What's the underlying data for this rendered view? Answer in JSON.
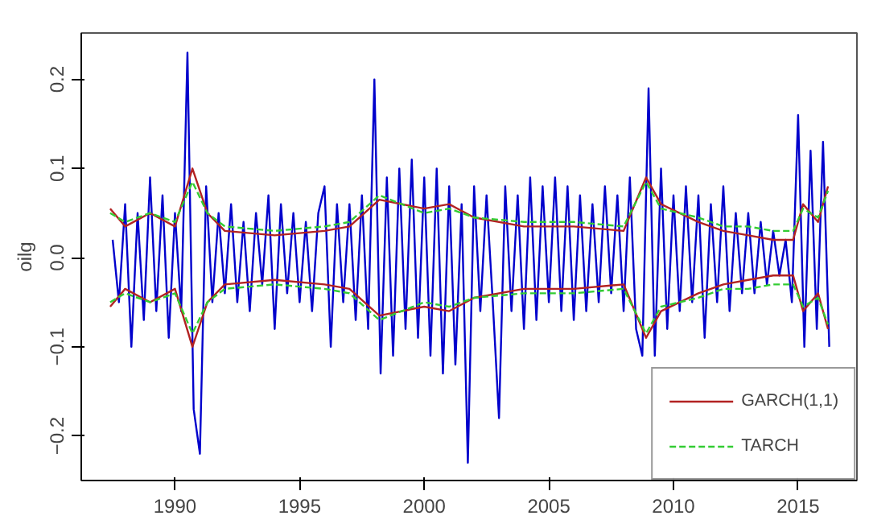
{
  "chart_data": {
    "type": "line",
    "ylabel": "oilg",
    "xlim": [
      1986.24,
      2017.36
    ],
    "ylim": [
      -0.25,
      0.252
    ],
    "xticks": [
      1990,
      1995,
      2000,
      2005,
      2010,
      2015
    ],
    "yticks": [
      -0.2,
      -0.1,
      {
        "value": 0,
        "label": "0.0"
      },
      0.1,
      0.2
    ],
    "grid": false,
    "legend": "bottom right",
    "marker": "none",
    "series": [
      {
        "color": "#0000cc",
        "line_style": "solid",
        "x": [
          1987.5,
          1987.75,
          1988,
          1988.25,
          1988.5,
          1988.75,
          1989,
          1989.25,
          1989.5,
          1989.75,
          1990,
          1990.25,
          1990.5,
          1990.75,
          1991,
          1991.25,
          1991.5,
          1991.75,
          1992,
          1992.25,
          1992.5,
          1992.75,
          1993,
          1993.25,
          1993.5,
          1993.75,
          1994,
          1994.25,
          1994.5,
          1994.75,
          1995,
          1995.25,
          1995.5,
          1995.75,
          1996,
          1996.25,
          1996.5,
          1996.75,
          1997,
          1997.25,
          1997.5,
          1997.75,
          1998,
          1998.25,
          1998.5,
          1998.75,
          1999,
          1999.25,
          1999.5,
          1999.75,
          2000,
          2000.25,
          2000.5,
          2000.75,
          2001,
          2001.25,
          2001.5,
          2001.75,
          2002,
          2002.25,
          2002.5,
          2002.75,
          2003,
          2003.25,
          2003.5,
          2003.75,
          2004,
          2004.25,
          2004.5,
          2004.75,
          2005,
          2005.25,
          2005.5,
          2005.75,
          2006,
          2006.25,
          2006.5,
          2006.75,
          2007,
          2007.25,
          2007.5,
          2007.75,
          2008,
          2008.25,
          2008.5,
          2008.75,
          2009,
          2009.25,
          2009.5,
          2009.75,
          2010,
          2010.25,
          2010.5,
          2010.75,
          2011,
          2011.25,
          2011.5,
          2011.75,
          2012,
          2012.25,
          2012.5,
          2012.75,
          2013,
          2013.25,
          2013.5,
          2013.75,
          2014,
          2014.25,
          2014.5,
          2014.75,
          2015,
          2015.25,
          2015.5,
          2015.75,
          2016,
          2016.25
        ],
        "values": [
          0.02,
          -0.05,
          0.06,
          -0.1,
          0.05,
          -0.07,
          0.09,
          -0.06,
          0.07,
          -0.09,
          0.05,
          -0.06,
          0.23,
          -0.17,
          -0.22,
          0.08,
          -0.05,
          0.05,
          -0.04,
          0.06,
          -0.05,
          0.04,
          -0.06,
          0.05,
          -0.03,
          0.07,
          -0.08,
          0.06,
          -0.04,
          0.05,
          -0.05,
          0.04,
          -0.06,
          0.05,
          0.08,
          -0.1,
          0.06,
          -0.05,
          0.06,
          -0.07,
          0.07,
          -0.08,
          0.2,
          -0.13,
          0.09,
          -0.11,
          0.1,
          -0.08,
          0.11,
          -0.09,
          0.09,
          -0.11,
          0.1,
          -0.13,
          0.08,
          -0.12,
          0.06,
          -0.23,
          0.08,
          -0.06,
          0.07,
          -0.05,
          -0.18,
          0.08,
          -0.06,
          0.07,
          -0.08,
          0.09,
          -0.07,
          0.08,
          -0.05,
          0.09,
          -0.06,
          0.08,
          -0.07,
          0.07,
          -0.06,
          0.06,
          -0.05,
          0.08,
          -0.04,
          0.07,
          -0.06,
          0.09,
          -0.08,
          -0.11,
          0.19,
          -0.11,
          0.1,
          -0.08,
          0.07,
          -0.06,
          0.08,
          -0.05,
          0.07,
          -0.09,
          0.06,
          -0.05,
          0.08,
          -0.06,
          0.05,
          -0.04,
          0.05,
          -0.04,
          0.04,
          -0.03,
          0.03,
          -0.02,
          0.02,
          -0.05,
          0.16,
          -0.1,
          0.12,
          -0.08,
          0.13,
          -0.1
        ]
      },
      {
        "name": "GARCH(1,1)",
        "color": "#b22222",
        "line_style": "solid",
        "x": [
          1987.4,
          1988,
          1989,
          1990,
          1990.7,
          1991.3,
          1992,
          1994,
          1996,
          1997,
          1998.2,
          2000,
          2001,
          2002,
          2004,
          2006,
          2008,
          2008.9,
          2009.5,
          2011,
          2012,
          2013,
          2014,
          2014.8,
          2015.2,
          2015.8,
          2016.2
        ],
        "values": [
          0.055,
          0.035,
          0.05,
          0.035,
          0.1,
          0.05,
          0.03,
          0.025,
          0.03,
          0.035,
          0.065,
          0.055,
          0.06,
          0.045,
          0.035,
          0.035,
          0.03,
          0.09,
          0.06,
          0.04,
          0.03,
          0.025,
          0.02,
          0.02,
          0.06,
          0.04,
          0.08
        ]
      },
      {
        "color": "#b22222",
        "line_style": "solid",
        "x": [
          1987.4,
          1988,
          1989,
          1990,
          1990.7,
          1991.3,
          1992,
          1994,
          1996,
          1997,
          1998.2,
          2000,
          2001,
          2002,
          2004,
          2006,
          2008,
          2008.9,
          2009.5,
          2011,
          2012,
          2013,
          2014,
          2014.8,
          2015.2,
          2015.8,
          2016.2
        ],
        "values": [
          -0.055,
          -0.035,
          -0.05,
          -0.035,
          -0.1,
          -0.05,
          -0.03,
          -0.025,
          -0.03,
          -0.035,
          -0.065,
          -0.055,
          -0.06,
          -0.045,
          -0.035,
          -0.035,
          -0.03,
          -0.09,
          -0.06,
          -0.04,
          -0.03,
          -0.025,
          -0.02,
          -0.02,
          -0.06,
          -0.04,
          -0.08
        ]
      },
      {
        "name": "TARCH",
        "color": "#33cc33",
        "line_style": "dashed",
        "x": [
          1987.4,
          1988,
          1989,
          1990,
          1990.7,
          1991.3,
          1992,
          1994,
          1996,
          1997,
          1998.2,
          2000,
          2001,
          2002,
          2004,
          2006,
          2008,
          2008.9,
          2009.5,
          2011,
          2012,
          2013,
          2014,
          2014.8,
          2015.2,
          2015.8,
          2016.2
        ],
        "values": [
          0.05,
          0.04,
          0.05,
          0.04,
          0.085,
          0.05,
          0.035,
          0.03,
          0.035,
          0.04,
          0.07,
          0.05,
          0.055,
          0.045,
          0.04,
          0.04,
          0.035,
          0.085,
          0.055,
          0.045,
          0.035,
          0.035,
          0.03,
          0.03,
          0.055,
          0.045,
          0.075
        ]
      },
      {
        "color": "#33cc33",
        "line_style": "dashed",
        "x": [
          1987.4,
          1988,
          1989,
          1990,
          1990.7,
          1991.3,
          1992,
          1994,
          1996,
          1997,
          1998.2,
          2000,
          2001,
          2002,
          2004,
          2006,
          2008,
          2008.9,
          2009.5,
          2011,
          2012,
          2013,
          2014,
          2014.8,
          2015.2,
          2015.8,
          2016.2
        ],
        "values": [
          -0.05,
          -0.04,
          -0.05,
          -0.04,
          -0.085,
          -0.05,
          -0.035,
          -0.03,
          -0.035,
          -0.04,
          -0.07,
          -0.05,
          -0.055,
          -0.045,
          -0.04,
          -0.04,
          -0.035,
          -0.085,
          -0.055,
          -0.045,
          -0.035,
          -0.035,
          -0.03,
          -0.03,
          -0.055,
          -0.045,
          -0.075
        ]
      }
    ]
  }
}
